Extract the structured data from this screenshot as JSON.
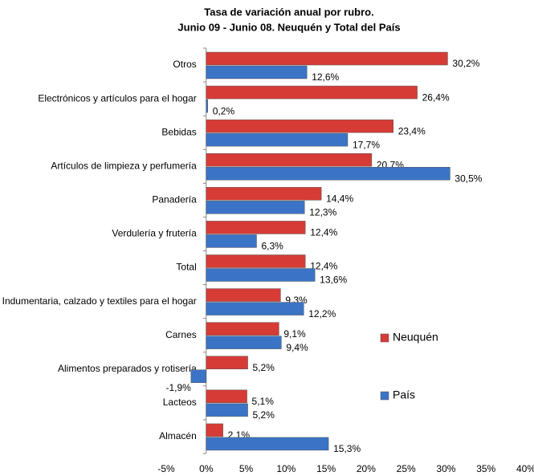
{
  "chart_data": {
    "type": "bar",
    "orientation": "horizontal",
    "title": "Tasa de variación anual por rubro.",
    "subtitle": "Junio 09 - Junio 08. Neuquén y Total del País",
    "categories": [
      "Otros",
      "Electrónicos y artículos para el hogar",
      "Bebidas",
      "Artículos de limpieza y perfumería",
      "Panadería",
      "Verdulería y frutería",
      "Total",
      "Indumentaria, calzado y textiles para el hogar",
      "Carnes",
      "Alimentos preparados y rotisería",
      "Lacteos",
      "Almacén"
    ],
    "series": [
      {
        "name": "Neuquén",
        "color": "#d63b36",
        "values": [
          30.2,
          26.4,
          23.4,
          20.7,
          14.4,
          12.4,
          12.4,
          9.3,
          9.1,
          5.2,
          5.1,
          2.1
        ],
        "value_labels": [
          "30,2%",
          "26,4%",
          "23,4%",
          "20,7%",
          "14,4%",
          "12,4%",
          "12,4%",
          "9,3%",
          "9,1%",
          "5,2%",
          "5,1%",
          "2,1%"
        ]
      },
      {
        "name": "País",
        "color": "#3b74c6",
        "values": [
          12.6,
          0.2,
          17.7,
          30.5,
          12.3,
          6.3,
          13.6,
          12.2,
          9.4,
          -1.9,
          5.2,
          15.3
        ],
        "value_labels": [
          "12,6%",
          "0,2%",
          "17,7%",
          "30,5%",
          "12,3%",
          "6,3%",
          "13,6%",
          "12,2%",
          "9,4%",
          "-1,9%",
          "5,2%",
          "15,3%"
        ]
      }
    ],
    "xlim": [
      -5,
      40
    ],
    "xticks": [
      {
        "value": -5,
        "label": "-5%"
      },
      {
        "value": 0,
        "label": "0%"
      },
      {
        "value": 5,
        "label": "5%"
      },
      {
        "value": 10,
        "label": "10%"
      },
      {
        "value": 15,
        "label": "15%"
      },
      {
        "value": 20,
        "label": "20%"
      },
      {
        "value": 25,
        "label": "25%"
      },
      {
        "value": 30,
        "label": "30%"
      },
      {
        "value": 35,
        "label": "35%"
      },
      {
        "value": 40,
        "label": "40%"
      }
    ],
    "grid": false,
    "legend": "right"
  }
}
